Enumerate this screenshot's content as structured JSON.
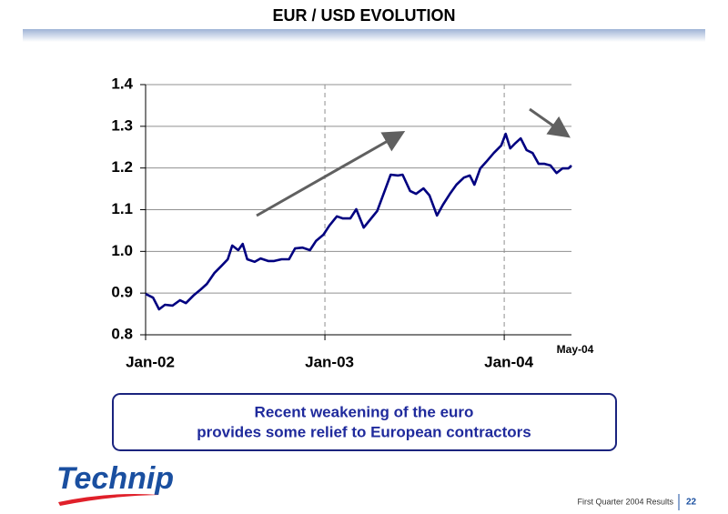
{
  "header": {
    "title": "EUR / USD EVOLUTION"
  },
  "chart_data": {
    "type": "line",
    "x": [
      0,
      0.5,
      0.9,
      1.3,
      1.8,
      2.3,
      2.7,
      3.2,
      3.7,
      4.1,
      4.6,
      5.1,
      5.5,
      5.8,
      6.2,
      6.5,
      6.8,
      7.3,
      7.7,
      8.2,
      8.6,
      9.1,
      9.6,
      10.0,
      10.5,
      11.0,
      11.4,
      11.9,
      12.3,
      12.8,
      13.2,
      13.7,
      14.1,
      14.6,
      15.0,
      15.5,
      16.0,
      16.4,
      16.9,
      17.2,
      17.7,
      18.1,
      18.6,
      19.0,
      19.5,
      19.9,
      20.4,
      20.8,
      21.3,
      21.7,
      22.0,
      22.4,
      22.8,
      23.3,
      23.8,
      24.1,
      24.4,
      24.7,
      25.1,
      25.5,
      25.9,
      26.3,
      26.7,
      27.1,
      27.5,
      27.9,
      28.3,
      28.5
    ],
    "values": [
      0.898,
      0.889,
      0.861,
      0.872,
      0.87,
      0.883,
      0.876,
      0.894,
      0.909,
      0.922,
      0.948,
      0.966,
      0.981,
      1.014,
      1.003,
      1.018,
      0.981,
      0.975,
      0.983,
      0.977,
      0.977,
      0.981,
      0.981,
      1.007,
      1.009,
      1.003,
      1.025,
      1.04,
      1.062,
      1.084,
      1.079,
      1.079,
      1.101,
      1.057,
      1.075,
      1.097,
      1.145,
      1.184,
      1.182,
      1.184,
      1.145,
      1.138,
      1.151,
      1.134,
      1.086,
      1.112,
      1.14,
      1.16,
      1.177,
      1.182,
      1.16,
      1.199,
      1.215,
      1.236,
      1.254,
      1.282,
      1.247,
      1.258,
      1.271,
      1.243,
      1.236,
      1.21,
      1.21,
      1.206,
      1.188,
      1.199,
      1.199,
      1.206
    ],
    "color": "#000080",
    "xlim": [
      0,
      28.5
    ],
    "xticks": [
      {
        "value": 0,
        "label": "Jan-02"
      },
      {
        "value": 12,
        "label": "Jan-03"
      },
      {
        "value": 24,
        "label": "Jan-04"
      }
    ],
    "end_label": "May-04",
    "ylim": [
      0.8,
      1.4
    ],
    "yticks": [
      0.8,
      0.9,
      {
        "value": 1,
        "label": "1.0"
      },
      1.1,
      1.2,
      1.3,
      1.4
    ],
    "grid": true
  },
  "callout": {
    "lines": [
      "Recent weakening of the euro",
      "provides some relief to European contractors"
    ]
  },
  "logo": {
    "text": "Technip"
  },
  "footer": {
    "text": "First Quarter 2004 Results",
    "page": "22"
  }
}
